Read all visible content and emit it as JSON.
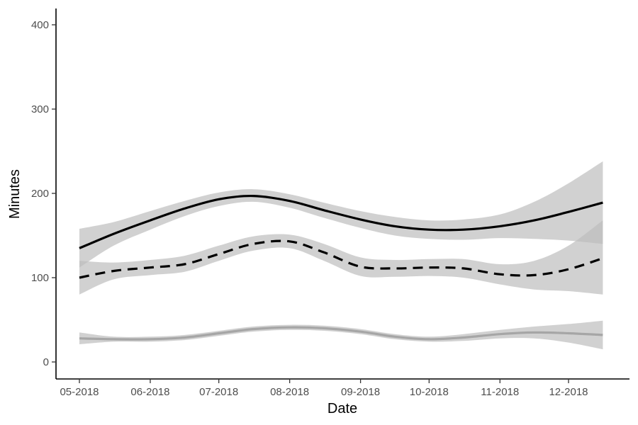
{
  "chart_data": {
    "type": "line",
    "xlabel": "Date",
    "ylabel": "Minutes",
    "xlim": [
      "2018-04-25",
      "2018-12-31"
    ],
    "ylim": [
      -20,
      420
    ],
    "x_ticks": [
      "2018-05-01",
      "2018-06-01",
      "2018-07-01",
      "2018-08-01",
      "2018-09-01",
      "2018-10-01",
      "2018-11-01",
      "2018-12-01"
    ],
    "x_tick_labels": [
      "05-2018",
      "06-2018",
      "07-2018",
      "08-2018",
      "09-2018",
      "10-2018",
      "11-2018",
      "12-2018"
    ],
    "y_ticks": [
      0,
      100,
      200,
      300,
      400
    ],
    "y_tick_labels": [
      "0",
      "100",
      "200",
      "300",
      "400"
    ],
    "grid": false,
    "band_color": "#bebebe",
    "series": [
      {
        "style": "solid",
        "color": "#000000",
        "x": [
          "2018-05-01",
          "2018-05-16",
          "2018-06-01",
          "2018-06-16",
          "2018-07-01",
          "2018-07-16",
          "2018-08-01",
          "2018-08-16",
          "2018-09-01",
          "2018-09-16",
          "2018-10-01",
          "2018-10-16",
          "2018-11-01",
          "2018-11-16",
          "2018-12-01",
          "2018-12-16"
        ],
        "y": [
          135,
          152,
          168,
          182,
          193,
          197,
          191,
          180,
          169,
          161,
          157,
          157,
          161,
          168,
          178,
          189
        ],
        "lower": [
          112,
          138,
          157,
          173,
          185,
          190,
          183,
          171,
          159,
          150,
          146,
          145,
          147,
          146,
          144,
          140
        ],
        "upper": [
          158,
          166,
          179,
          191,
          201,
          205,
          199,
          189,
          179,
          172,
          168,
          169,
          175,
          190,
          212,
          238
        ]
      },
      {
        "style": "dashed",
        "color": "#000000",
        "x": [
          "2018-05-01",
          "2018-05-16",
          "2018-06-01",
          "2018-06-16",
          "2018-07-01",
          "2018-07-16",
          "2018-08-01",
          "2018-08-16",
          "2018-09-01",
          "2018-09-16",
          "2018-10-01",
          "2018-10-16",
          "2018-11-01",
          "2018-11-16",
          "2018-12-01",
          "2018-12-16"
        ],
        "y": [
          100,
          108,
          112,
          116,
          128,
          140,
          143,
          130,
          113,
          111,
          112,
          111,
          104,
          103,
          110,
          123
        ],
        "lower": [
          80,
          98,
          103,
          107,
          120,
          132,
          135,
          120,
          102,
          101,
          102,
          100,
          92,
          86,
          84,
          80
        ],
        "upper": [
          120,
          118,
          121,
          126,
          138,
          149,
          151,
          140,
          124,
          121,
          122,
          122,
          116,
          120,
          138,
          168
        ]
      },
      {
        "style": "solid",
        "color": "#a6a6a6",
        "x": [
          "2018-05-01",
          "2018-05-16",
          "2018-06-01",
          "2018-06-16",
          "2018-07-01",
          "2018-07-16",
          "2018-08-01",
          "2018-08-16",
          "2018-09-01",
          "2018-09-16",
          "2018-10-01",
          "2018-10-16",
          "2018-11-01",
          "2018-11-16",
          "2018-12-01",
          "2018-12-16"
        ],
        "y": [
          28,
          27,
          27,
          29,
          34,
          39,
          41,
          40,
          36,
          30,
          27,
          29,
          33,
          35,
          34,
          32
        ],
        "lower": [
          21,
          24,
          24,
          26,
          31,
          36,
          38,
          37,
          33,
          27,
          24,
          25,
          28,
          28,
          23,
          15
        ],
        "upper": [
          35,
          30,
          30,
          32,
          37,
          42,
          44,
          43,
          39,
          33,
          30,
          33,
          38,
          42,
          45,
          49
        ]
      }
    ]
  }
}
